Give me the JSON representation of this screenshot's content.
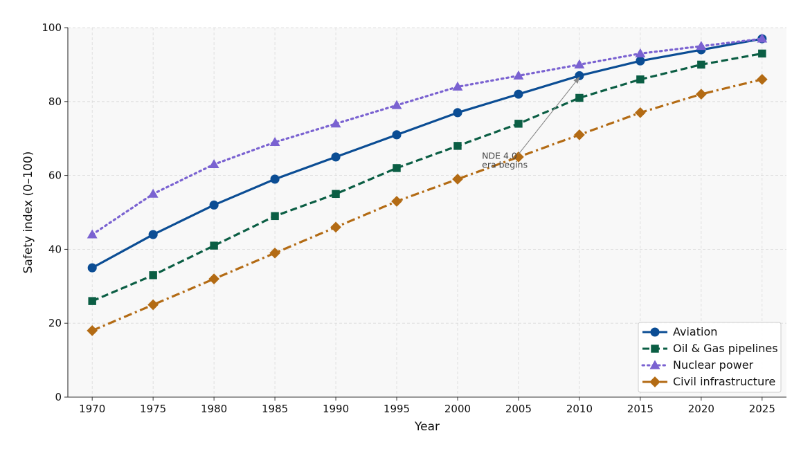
{
  "chart_data": {
    "type": "line",
    "title": "",
    "xlabel": "Year",
    "ylabel": "Safety index (0–100)",
    "x": [
      1970,
      1975,
      1980,
      1985,
      1990,
      1995,
      2000,
      2005,
      2010,
      2015,
      2020,
      2025
    ],
    "xlim": [
      1968,
      2027
    ],
    "ylim": [
      0,
      100
    ],
    "yticks": [
      0,
      20,
      40,
      60,
      80,
      100
    ],
    "grid": true,
    "legend_position": "lower-right",
    "series": [
      {
        "name": "Aviation",
        "values": [
          35,
          44,
          52,
          59,
          65,
          71,
          77,
          82,
          87,
          91,
          94,
          97
        ],
        "color": "#0b4d94",
        "line_style": "solid",
        "marker": "circle"
      },
      {
        "name": "Oil & Gas pipelines",
        "values": [
          26,
          33,
          41,
          49,
          55,
          62,
          68,
          74,
          81,
          86,
          90,
          93
        ],
        "color": "#0b5e44",
        "line_style": "dashed",
        "marker": "square"
      },
      {
        "name": "Nuclear power",
        "values": [
          44,
          55,
          63,
          69,
          74,
          79,
          84,
          87,
          90,
          93,
          95,
          97
        ],
        "color": "#7a62d1",
        "line_style": "dotted",
        "marker": "triangle"
      },
      {
        "name": "Civil infrastructure",
        "values": [
          18,
          25,
          32,
          39,
          46,
          53,
          59,
          65,
          71,
          77,
          82,
          86
        ],
        "color": "#b36b14",
        "line_style": "dashdot",
        "marker": "diamond"
      }
    ],
    "annotations": [
      {
        "lines": [
          "NDE 4.0",
          "era begins"
        ],
        "text_anchor": {
          "x": 2002,
          "y": 63
        },
        "arrow_from": {
          "x": 2005,
          "y": 65
        },
        "arrow_to": {
          "x": 2010,
          "y": 87
        }
      }
    ]
  }
}
